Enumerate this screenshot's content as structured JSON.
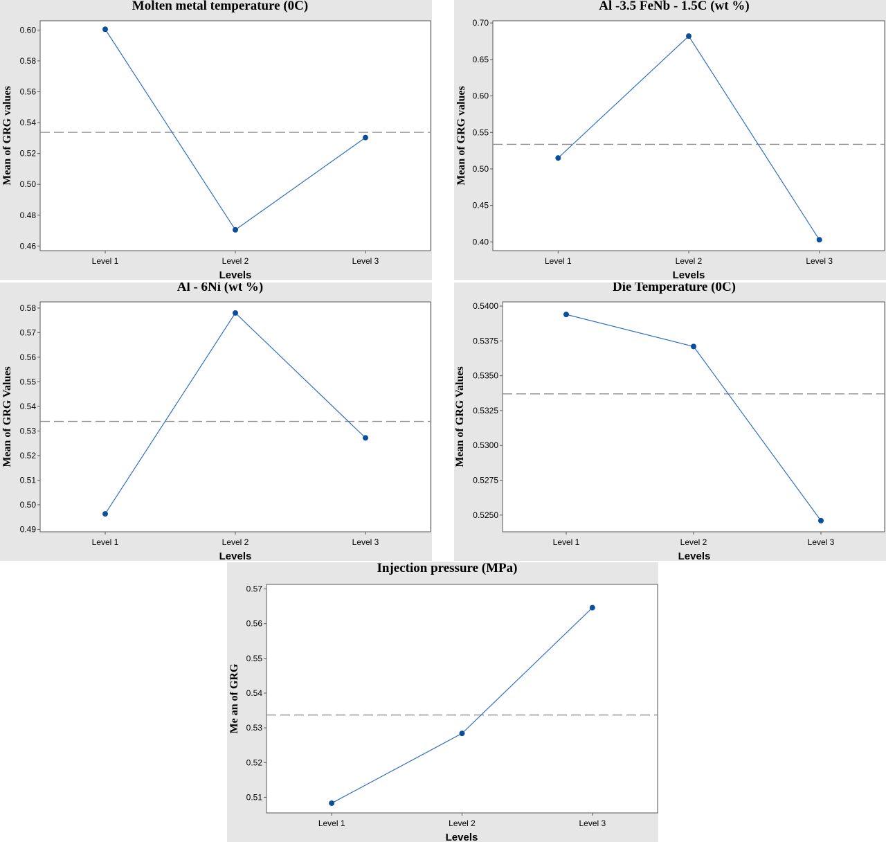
{
  "chart_data": [
    {
      "type": "line",
      "title": "Molten metal  temperature (0C)",
      "xlabel": "Levels",
      "ylabel": "Mean of GRG values",
      "categories": [
        "Level 1",
        "Level 2",
        "Level 3"
      ],
      "values": [
        0.6005,
        0.4705,
        0.5303
      ],
      "reference_mean": 0.5337,
      "ylim": [
        0.457,
        0.606
      ],
      "yticks": [
        0.46,
        0.48,
        0.5,
        0.52,
        0.54,
        0.56,
        0.58,
        0.6
      ],
      "ytick_labels": [
        "0.46",
        "0.48",
        "0.50",
        "0.52",
        "0.54",
        "0.56",
        "0.58",
        "0.60"
      ],
      "grid": false
    },
    {
      "type": "line",
      "title": "Al -3.5 FeNb - 1.5C (wt %)",
      "xlabel": "Levels",
      "ylabel": "Mean of GRG values",
      "categories": [
        "Level 1",
        "Level 2",
        "Level 3"
      ],
      "values": [
        0.515,
        0.682,
        0.403
      ],
      "reference_mean": 0.5337,
      "ylim": [
        0.388,
        0.703
      ],
      "yticks": [
        0.4,
        0.45,
        0.5,
        0.55,
        0.6,
        0.65,
        0.7
      ],
      "ytick_labels": [
        "0.40",
        "0.45",
        "0.50",
        "0.55",
        "0.60",
        "0.65",
        "0.70"
      ],
      "grid": false
    },
    {
      "type": "line",
      "title": "Al - 6Ni (wt %)",
      "xlabel": "Levels",
      "ylabel": "Mean of GRG Values",
      "categories": [
        "Level 1",
        "Level 2",
        "Level 3"
      ],
      "values": [
        0.4963,
        0.578,
        0.5272
      ],
      "reference_mean": 0.5339,
      "ylim": [
        0.489,
        0.5825
      ],
      "yticks": [
        0.49,
        0.5,
        0.51,
        0.52,
        0.53,
        0.54,
        0.55,
        0.56,
        0.57,
        0.58
      ],
      "ytick_labels": [
        "0.49",
        "0.50",
        "0.51",
        "0.52",
        "0.53",
        "0.54",
        "0.55",
        "0.56",
        "0.57",
        "0.58"
      ],
      "grid": false
    },
    {
      "type": "line",
      "title": "Die Temperature (0C)",
      "xlabel": "Levels",
      "ylabel": "Mean of GRG Values",
      "categories": [
        "Level 1",
        "Level 2",
        "Level 3"
      ],
      "values": [
        0.5394,
        0.5371,
        0.5246
      ],
      "reference_mean": 0.5337,
      "ylim": [
        0.5238,
        0.5403
      ],
      "yticks": [
        0.525,
        0.5275,
        0.53,
        0.5325,
        0.535,
        0.5375,
        0.54
      ],
      "ytick_labels": [
        "0.5250",
        "0.5275",
        "0.5300",
        "0.5325",
        "0.5350",
        "0.5375",
        "0.5400"
      ],
      "grid": false
    },
    {
      "type": "line",
      "title": "Injection pressure (MPa)",
      "xlabel": "Levels",
      "ylabel": "Me an of GRG",
      "categories": [
        "Level 1",
        "Level 2",
        "Level 3"
      ],
      "values": [
        0.5083,
        0.5284,
        0.5646
      ],
      "reference_mean": 0.5337,
      "ylim": [
        0.5055,
        0.5713
      ],
      "yticks": [
        0.51,
        0.52,
        0.53,
        0.54,
        0.55,
        0.56,
        0.57
      ],
      "ytick_labels": [
        "0.51",
        "0.52",
        "0.53",
        "0.54",
        "0.55",
        "0.56",
        "0.57"
      ],
      "grid": false
    }
  ]
}
